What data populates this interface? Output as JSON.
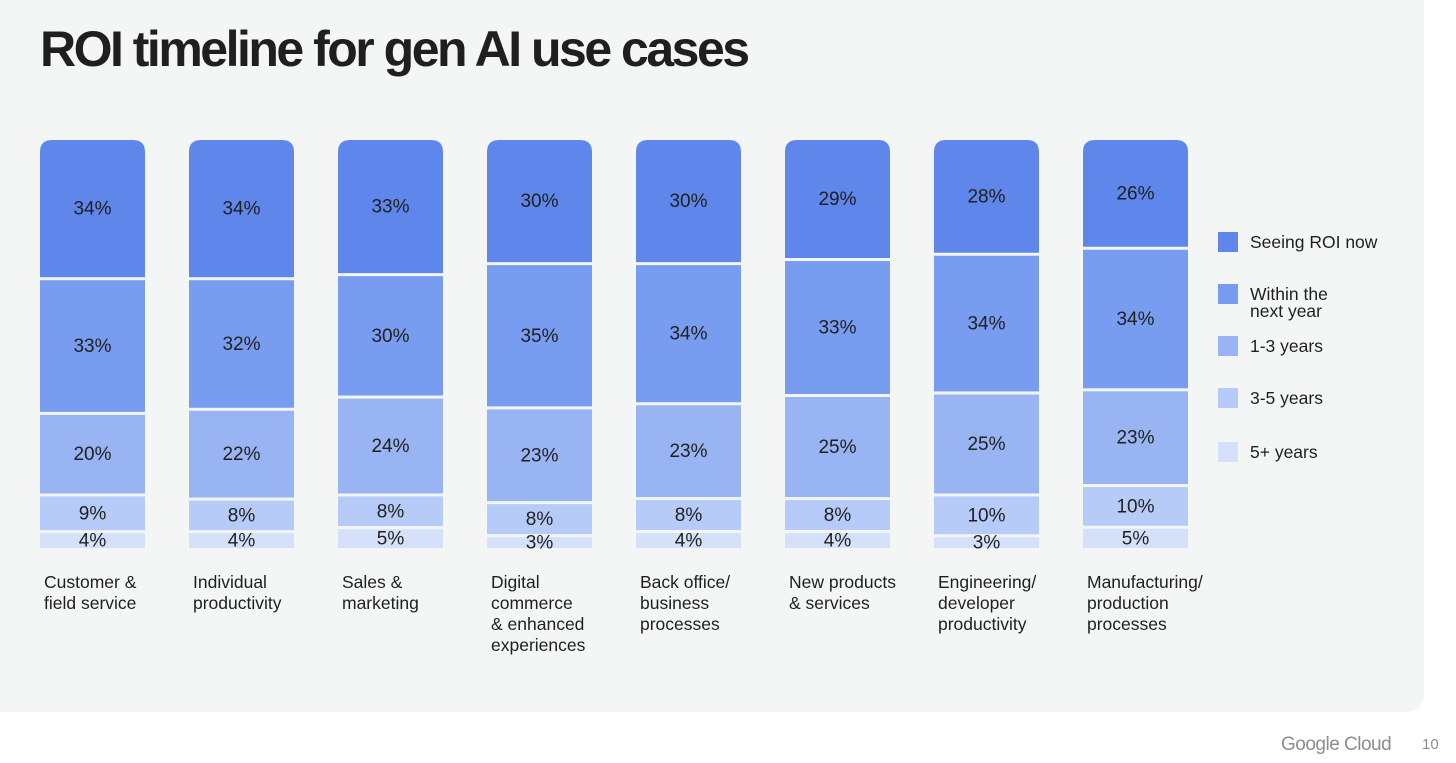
{
  "slide": {
    "title": "ROI timeline for gen AI use cases",
    "footer_logo": "Google Cloud",
    "page_number": "10"
  },
  "chart_data": {
    "type": "bar",
    "stacked": true,
    "orientation": "vertical",
    "categories": [
      [
        "Customer &",
        "field service"
      ],
      [
        "Individual",
        "productivity"
      ],
      [
        "Sales &",
        "marketing"
      ],
      [
        "Digital",
        "commerce",
        "& enhanced",
        "experiences"
      ],
      [
        "Back office/",
        "business",
        "processes"
      ],
      [
        "New products",
        "& services"
      ],
      [
        "Engineering/",
        "developer",
        "productivity"
      ],
      [
        "Manufacturing/",
        "production",
        "processes"
      ]
    ],
    "series": [
      {
        "name": "Seeing ROI now",
        "legend_lines": [
          "Seeing ROI now"
        ],
        "color": "#5e86eb",
        "values": [
          34,
          34,
          33,
          30,
          30,
          29,
          28,
          26
        ]
      },
      {
        "name": "Within the next year",
        "legend_lines": [
          "Within the",
          "next year"
        ],
        "color": "#789df0",
        "values": [
          33,
          32,
          30,
          35,
          34,
          33,
          34,
          34
        ]
      },
      {
        "name": "1-3 years",
        "legend_lines": [
          "1-3 years"
        ],
        "color": "#98b4f3",
        "values": [
          20,
          22,
          24,
          23,
          23,
          25,
          25,
          23
        ]
      },
      {
        "name": "3-5 years",
        "legend_lines": [
          "3-5 years"
        ],
        "color": "#b6cbf7",
        "values": [
          9,
          8,
          8,
          8,
          8,
          8,
          10,
          10
        ]
      },
      {
        "name": "5+ years",
        "legend_lines": [
          "5+ years"
        ],
        "color": "#d5e1fb",
        "values": [
          4,
          4,
          5,
          3,
          4,
          4,
          3,
          5
        ]
      }
    ],
    "value_suffix": "%",
    "ylim": [
      0,
      100
    ],
    "grid": false,
    "legend_position": "right"
  }
}
